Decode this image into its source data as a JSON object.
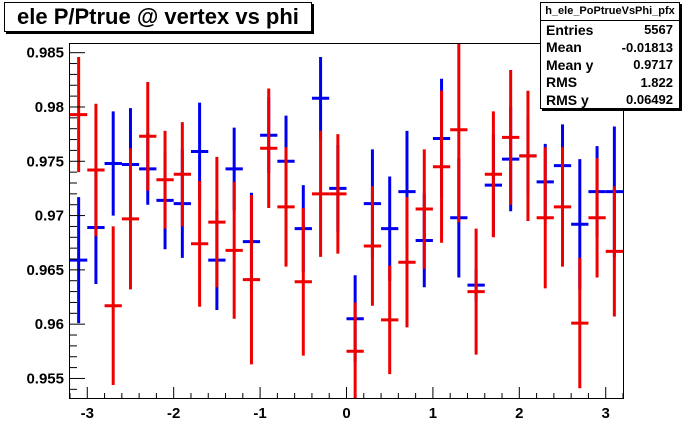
{
  "chart_data": {
    "type": "scatter",
    "title": "ele P/Ptrue @ vertex vs phi",
    "xlabel": "",
    "ylabel": "",
    "xlim": [
      -3.2,
      3.2
    ],
    "ylim": [
      0.9532,
      0.9858
    ],
    "x_ticks": [
      -3,
      -2,
      -1,
      0,
      1,
      2,
      3
    ],
    "x_tick_labels": [
      "-3",
      "-2",
      "-1",
      "0",
      "1",
      "2",
      "3"
    ],
    "y_ticks": [
      0.955,
      0.96,
      0.965,
      0.97,
      0.975,
      0.98,
      0.985
    ],
    "y_tick_labels": [
      "0.955",
      "0.96",
      "0.965",
      "0.97",
      "0.975",
      "0.98",
      "0.985"
    ],
    "grid": false,
    "stats_box": {
      "name": "h_ele_PoPtrueVsPhi_pfx",
      "rows": [
        {
          "label": "Entries",
          "value": "5567"
        },
        {
          "label": "Mean",
          "value": "-0.01813"
        },
        {
          "label": "Mean y",
          "value": "0.9717"
        },
        {
          "label": "RMS",
          "value": "1.822"
        },
        {
          "label": "RMS y",
          "value": "0.06492"
        }
      ]
    },
    "series": [
      {
        "color": "#0000ee",
        "bin_halfwidth": 0.1,
        "x": [
          -3.1,
          -2.9,
          -2.7,
          -2.5,
          -2.3,
          -2.1,
          -1.9,
          -1.7,
          -1.5,
          -1.3,
          -1.1,
          -0.9,
          -0.7,
          -0.5,
          -0.3,
          -0.1,
          0.1,
          0.3,
          0.5,
          0.7,
          0.9,
          1.1,
          1.3,
          1.5,
          1.7,
          1.9,
          2.1,
          2.3,
          2.5,
          2.7,
          2.9,
          3.1
        ],
        "y": [
          0.9659,
          0.9689,
          0.9748,
          0.9747,
          0.9743,
          0.9714,
          0.9711,
          0.9759,
          0.9659,
          0.9743,
          0.9676,
          0.9774,
          0.975,
          0.9688,
          0.9808,
          0.9725,
          0.9605,
          0.9711,
          0.9688,
          0.9722,
          0.9677,
          0.9771,
          0.9698,
          0.9636,
          0.9728,
          0.9752,
          0.9755,
          0.9731,
          0.9746,
          0.9692,
          0.9722,
          0.9722
        ],
        "err": [
          0.0058,
          0.0052,
          0.0048,
          0.0052,
          0.0033,
          0.0045,
          0.005,
          0.0045,
          0.0046,
          0.0038,
          0.0045,
          0.0035,
          0.0042,
          0.004,
          0.0038,
          0.004,
          0.004,
          0.005,
          0.0048,
          0.0056,
          0.0043,
          0.0055,
          0.0055,
          0.0015,
          0.0047,
          0.0048,
          0.0035,
          0.0035,
          0.0038,
          0.006,
          0.0042,
          0.006
        ]
      },
      {
        "color": "#ee0000",
        "bin_halfwidth": 0.1,
        "x": [
          -3.1,
          -2.9,
          -2.7,
          -2.5,
          -2.3,
          -2.1,
          -1.9,
          -1.7,
          -1.5,
          -1.3,
          -1.1,
          -0.9,
          -0.7,
          -0.5,
          -0.3,
          -0.1,
          0.1,
          0.3,
          0.5,
          0.7,
          0.9,
          1.1,
          1.3,
          1.5,
          1.7,
          1.9,
          2.1,
          2.3,
          2.5,
          2.7,
          2.9,
          3.1
        ],
        "y": [
          0.9793,
          0.9742,
          0.9617,
          0.9697,
          0.9773,
          0.9733,
          0.9738,
          0.9674,
          0.9694,
          0.9668,
          0.9641,
          0.9762,
          0.9708,
          0.9639,
          0.972,
          0.972,
          0.9575,
          0.9672,
          0.9604,
          0.9657,
          0.9706,
          0.9745,
          0.9779,
          0.963,
          0.9738,
          0.9772,
          0.9755,
          0.9698,
          0.9708,
          0.9601,
          0.9698,
          0.9667
        ],
        "err": [
          0.0053,
          0.0061,
          0.0073,
          0.0065,
          0.005,
          0.0045,
          0.0048,
          0.0058,
          0.006,
          0.0063,
          0.0078,
          0.0055,
          0.0055,
          0.0068,
          0.0058,
          0.0055,
          0.0045,
          0.0055,
          0.005,
          0.006,
          0.0055,
          0.007,
          0.0085,
          0.0058,
          0.0058,
          0.0062,
          0.006,
          0.0065,
          0.0055,
          0.006,
          0.0055,
          0.006
        ]
      }
    ]
  }
}
